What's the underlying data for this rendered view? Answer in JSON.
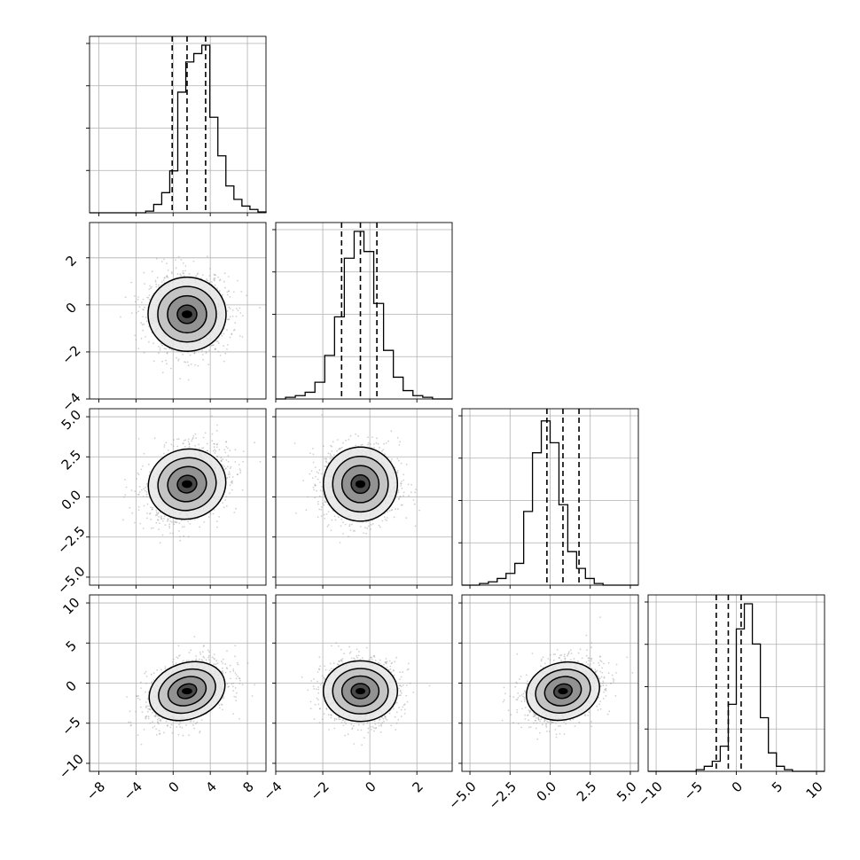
{
  "chart_data": {
    "type": "corner",
    "grid": true,
    "colors": {
      "line": "#000000",
      "grid": "#b0b0b0",
      "samples": "#9a9a9a",
      "density": "#000000"
    },
    "parameters": [
      {
        "range": [
          -9,
          10
        ],
        "ticks": [
          -8,
          -4,
          0,
          4,
          8
        ],
        "tick_labels": [
          "−8",
          "−4",
          "0",
          "4",
          "8"
        ],
        "quantiles": [
          -0.1,
          1.5,
          3.5
        ],
        "mean": 1.5,
        "sd": 2.0,
        "hist": [
          0,
          0,
          0,
          0,
          0,
          0,
          0,
          0.01,
          0.05,
          0.12,
          0.25,
          0.72,
          0.9,
          0.95,
          1.0,
          0.57,
          0.34,
          0.16,
          0.08,
          0.04,
          0.02,
          0.005
        ]
      },
      {
        "range": [
          -4,
          3.5
        ],
        "ticks": [
          -4,
          -2,
          0,
          2
        ],
        "tick_labels": [
          "−4",
          "−2",
          "0",
          "2"
        ],
        "quantiles": [
          -1.2,
          -0.4,
          0.3
        ],
        "mean": -0.4,
        "sd": 0.75,
        "hist": [
          0,
          0.01,
          0.02,
          0.04,
          0.1,
          0.26,
          0.49,
          0.84,
          1.0,
          0.88,
          0.57,
          0.29,
          0.13,
          0.05,
          0.02,
          0.01,
          0,
          0
        ]
      },
      {
        "range": [
          -5.5,
          5.5
        ],
        "ticks": [
          -5,
          -2.5,
          0,
          2.5,
          5
        ],
        "tick_labels": [
          "−5.0",
          "−2.5",
          "0.0",
          "2.5",
          "5.0"
        ],
        "quantiles": [
          -0.2,
          0.8,
          1.8
        ],
        "mean": 0.8,
        "sd": 1.1,
        "hist": [
          0,
          0,
          0.01,
          0.02,
          0.04,
          0.07,
          0.13,
          0.44,
          0.79,
          0.98,
          0.85,
          0.48,
          0.2,
          0.1,
          0.04,
          0.01,
          0,
          0,
          0,
          0
        ]
      },
      {
        "range": [
          -11,
          11
        ],
        "ticks": [
          -10,
          -5,
          0,
          5,
          10
        ],
        "tick_labels": [
          "−10",
          "−5",
          "0",
          "5",
          "10"
        ],
        "quantiles": [
          -2.5,
          -1,
          0.6
        ],
        "mean": -1.0,
        "sd": 1.8,
        "hist": [
          0,
          0,
          0,
          0,
          0,
          0,
          0.01,
          0.03,
          0.06,
          0.15,
          0.4,
          0.85,
          1.0,
          0.76,
          0.32,
          0.11,
          0.03,
          0.01,
          0,
          0,
          0,
          0
        ]
      }
    ],
    "correlations": {
      "1-0": 0.0,
      "2-0": 0.3,
      "2-1": 0.0,
      "3-0": 0.4,
      "3-1": 0.0,
      "3-2": 0.3
    },
    "contour_levels_sigma": [
      0.5,
      1.0,
      1.5,
      2.0
    ]
  }
}
